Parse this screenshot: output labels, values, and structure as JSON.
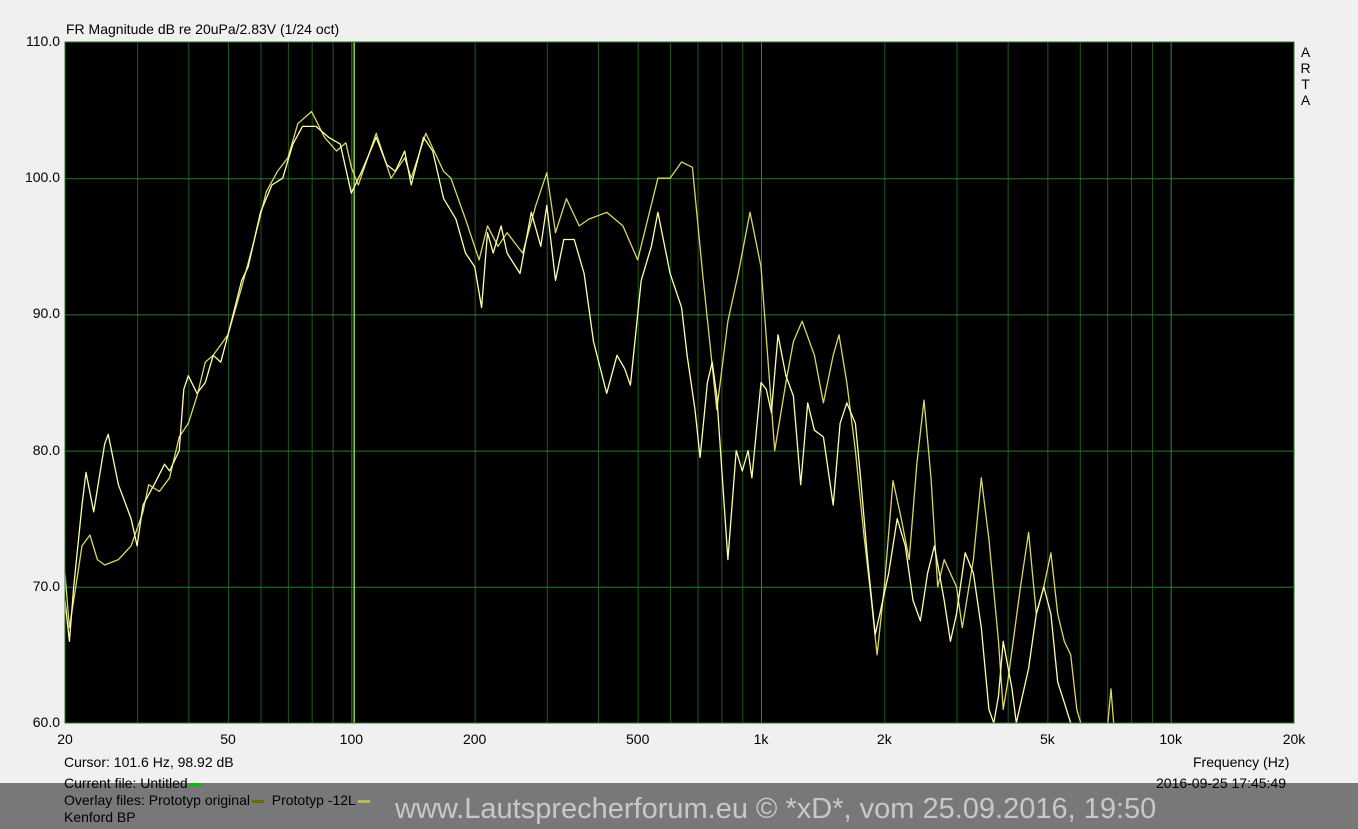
{
  "chart_data": {
    "type": "line",
    "title": "FR Magnitude dB re 20uPa/2.83V (1/24 oct)",
    "xlabel": "Frequency (Hz)",
    "ylabel": "",
    "xscale": "log",
    "xlim": [
      20,
      20000
    ],
    "ylim": [
      60,
      110
    ],
    "grid": true,
    "background": "#000000",
    "grid_color": "#2a7a2a",
    "x_ticks": [
      "20",
      "50",
      "100",
      "200",
      "500",
      "1k",
      "2k",
      "5k",
      "10k",
      "20k"
    ],
    "x_tick_values": [
      20,
      50,
      100,
      200,
      500,
      1000,
      2000,
      5000,
      10000,
      20000
    ],
    "y_ticks": [
      "110.0",
      "100.0",
      "90.0",
      "80.0",
      "70.0",
      "60.0"
    ],
    "y_tick_values": [
      110,
      100,
      90,
      80,
      70,
      60
    ],
    "side_label": "ARTA",
    "cursor": {
      "frequency_hz": 101.6,
      "db": 98.92,
      "color": "#9acd32"
    },
    "series": [
      {
        "name": "Prototyp original",
        "color": "#d8d860",
        "x": [
          20,
          20.5,
          21,
          22,
          23,
          24,
          25,
          27,
          29,
          31,
          32,
          34,
          36,
          38,
          40,
          42,
          44,
          46,
          50,
          54,
          58,
          62,
          66,
          70,
          74,
          80,
          86,
          92,
          97,
          100,
          104,
          115,
          125,
          135,
          140,
          152,
          168,
          175,
          190,
          205,
          215,
          228,
          240,
          262,
          282,
          300,
          315,
          335,
          360,
          380,
          420,
          460,
          500,
          560,
          600,
          640,
          680,
          720,
          780,
          830,
          880,
          940,
          1000,
          1080,
          1150,
          1200,
          1260,
          1350,
          1420,
          1500,
          1550,
          1620,
          1700,
          1780,
          1860,
          1920,
          2000,
          2100,
          2200,
          2300,
          2400,
          2500,
          2600,
          2700,
          2800,
          3000,
          3100,
          3300,
          3450,
          3600,
          3800,
          3900,
          4000,
          4300,
          4500,
          4700,
          4900,
          5100,
          5300,
          5500,
          5700,
          5900,
          6100,
          7000,
          7150,
          7300
        ],
        "y": [
          71,
          67,
          69,
          73,
          73.8,
          72,
          71.6,
          72,
          73,
          75.5,
          77.5,
          77,
          78,
          81,
          82,
          84,
          86.5,
          87,
          88.5,
          92,
          95.5,
          99,
          100.5,
          101.5,
          104,
          104.9,
          103,
          102,
          102.6,
          100.8,
          99.5,
          103.3,
          100,
          101.5,
          100,
          103.3,
          100.5,
          100,
          97,
          94,
          96.5,
          95,
          96,
          94.5,
          98,
          100.4,
          96,
          98.5,
          96.5,
          97,
          97.5,
          96.5,
          94,
          100,
          100,
          101.2,
          100.8,
          93,
          83,
          89.5,
          93,
          97.5,
          93.5,
          80,
          85,
          88,
          89.5,
          87,
          83.5,
          87,
          88.5,
          85,
          80,
          74,
          69,
          65,
          70,
          77.8,
          75,
          72,
          79,
          83.7,
          78,
          70,
          72,
          70,
          67,
          72,
          78,
          73.5,
          66,
          61,
          63,
          70,
          74,
          68,
          70,
          72.5,
          68,
          66,
          65,
          61,
          59.5,
          59.5,
          62.5,
          59
        ]
      },
      {
        "name": "Prototyp -12L",
        "color": "#ffffa8",
        "x": [
          20,
          20.5,
          21,
          22,
          22.5,
          23.5,
          25,
          25.5,
          27,
          29,
          30,
          31,
          33,
          35,
          36,
          38,
          39,
          40,
          42,
          44,
          46,
          48,
          50,
          54,
          56,
          60,
          64,
          68,
          72,
          76,
          82,
          88,
          94,
          100,
          106,
          115,
          122,
          128,
          135,
          140,
          150,
          158,
          168,
          180,
          190,
          200,
          208,
          215,
          222,
          232,
          240,
          258,
          275,
          290,
          300,
          315,
          330,
          350,
          370,
          390,
          420,
          445,
          465,
          480,
          510,
          540,
          560,
          600,
          640,
          660,
          690,
          710,
          740,
          760,
          780,
          830,
          870,
          900,
          930,
          950,
          1000,
          1030,
          1060,
          1100,
          1150,
          1200,
          1250,
          1300,
          1350,
          1420,
          1500,
          1560,
          1620,
          1700,
          1750,
          1820,
          1900,
          1950,
          2050,
          2150,
          2250,
          2350,
          2450,
          2550,
          2650,
          2800,
          2900,
          3000,
          3150,
          3300,
          3450,
          3600,
          3700,
          3800,
          3900,
          4100,
          4200,
          4500,
          4700,
          4900,
          5100,
          5300,
          5500,
          5700
        ],
        "y": [
          69,
          66,
          70,
          76,
          78.4,
          75.5,
          80.5,
          81.2,
          77.5,
          75,
          73,
          76,
          77.5,
          79,
          78.5,
          80,
          84.5,
          85.5,
          84.2,
          85,
          87,
          86.5,
          88.5,
          92.5,
          93.5,
          97.5,
          99.5,
          100,
          102.5,
          103.8,
          103.8,
          103,
          102.5,
          98.9,
          100.5,
          103,
          101,
          100.5,
          102,
          99.5,
          103,
          102,
          98.5,
          97,
          94.5,
          93.5,
          90.5,
          96,
          94.5,
          96.5,
          94.5,
          93,
          97.5,
          95,
          98,
          92.5,
          95.5,
          95.5,
          93,
          88,
          84.2,
          87,
          86,
          84.8,
          92.5,
          95,
          97.5,
          93,
          90.5,
          87,
          83,
          79.5,
          85,
          86.5,
          84,
          72,
          80,
          78.5,
          80,
          78,
          85,
          84.5,
          82.8,
          88.5,
          85.5,
          84,
          77.5,
          83.5,
          81.5,
          81,
          76,
          82,
          83.5,
          82,
          78,
          72,
          66.5,
          68,
          71,
          75,
          73,
          69,
          67.5,
          71,
          73,
          69,
          66,
          68,
          72.5,
          71,
          67,
          61,
          60,
          62,
          66,
          62.5,
          60,
          64,
          68,
          70,
          68,
          63,
          61.5,
          60
        ]
      }
    ]
  },
  "footer": {
    "cursor_text": "Cursor: 101.6 Hz, 98.92 dB",
    "current_file": "Current file: Untitled",
    "current_file_color": "#00c000",
    "overlay_label": "Overlay files: Prototyp original",
    "overlay_1_color": "#6b6b00",
    "overlay_2": "Prototyp -12L",
    "overlay_2_color": "#b8b860",
    "overlay_3": "Kenford BP",
    "timestamp": "2016-09-25  17:45:49"
  },
  "watermark": "www.Lautsprecherforum.eu © *xD*, vom 25.09.2016, 19:50"
}
